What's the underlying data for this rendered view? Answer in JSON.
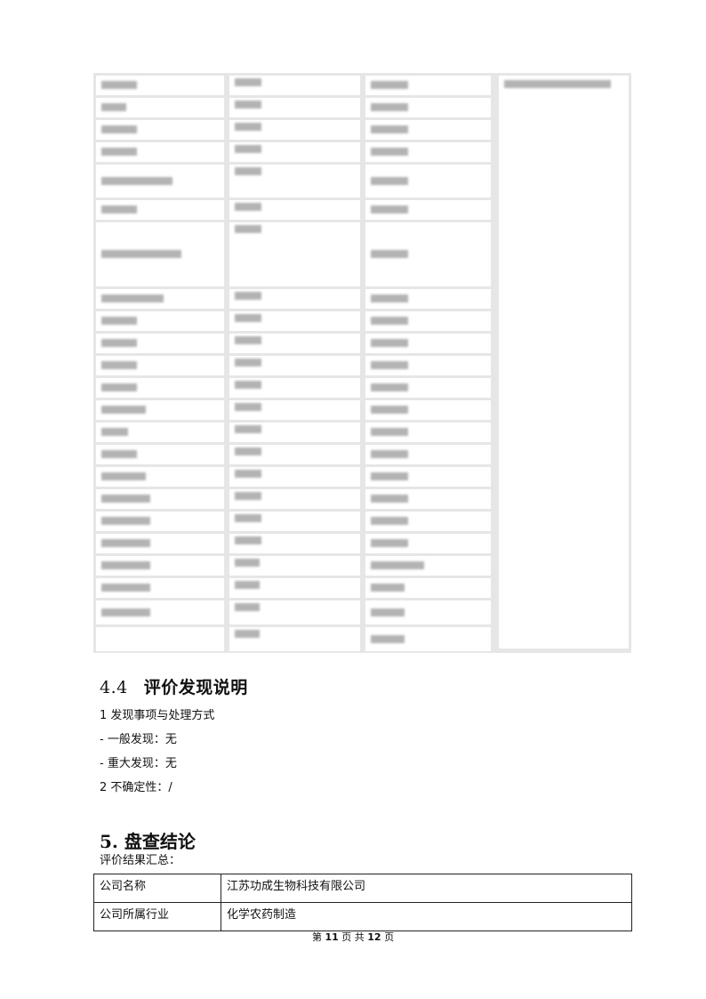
{
  "section_4_4": {
    "number": "4.4",
    "title": "评价发现说明",
    "lines": [
      "1 发现事项与处理方式",
      "- 一般发现：无",
      "- 重大发现：无",
      "2 不确定性：/"
    ]
  },
  "section_5": {
    "title": "5. 盘查结论",
    "subtitle": "评价结果汇总：",
    "summary_table": [
      {
        "key": "公司名称",
        "value": "江苏功成生物科技有限公司"
      },
      {
        "key": "公司所属行业",
        "value": "化学农药制造"
      }
    ]
  },
  "footer": {
    "prefix": "第",
    "page": "11",
    "middle": "页 共",
    "total": "12",
    "suffix": "页"
  }
}
